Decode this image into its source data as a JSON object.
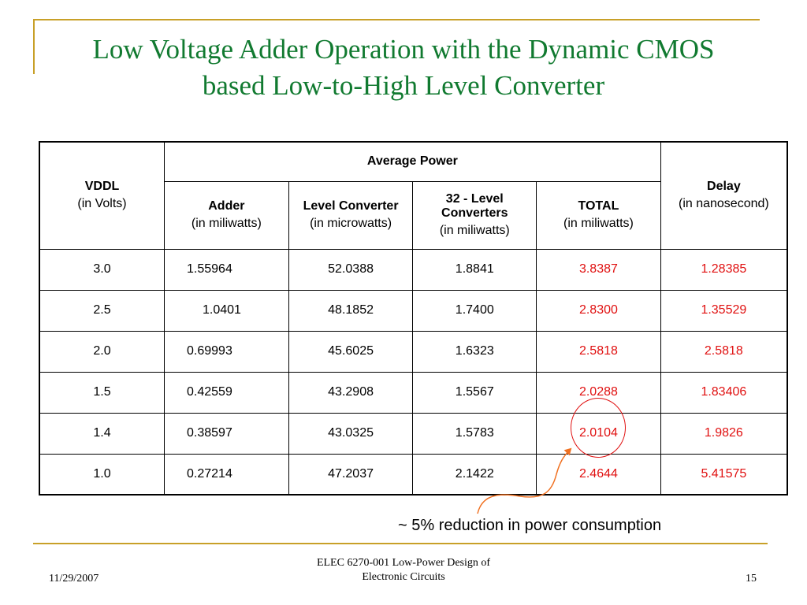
{
  "title": {
    "line1": "Low Voltage Adder Operation with the Dynamic CMOS",
    "line2": "based Low-to-High Level Converter"
  },
  "table": {
    "headers": {
      "vddl": "VDDL",
      "vddl_unit": "(in Volts)",
      "avg_power": "Average Power",
      "adder": "Adder",
      "adder_unit": "(in miliwatts)",
      "level_converter": "Level Converter",
      "level_converter_unit": "(in microwatts)",
      "converters32": "32 - Level Converters",
      "converters32_unit": "(in miliwatts)",
      "total": "TOTAL",
      "total_unit": "(in miliwatts)",
      "delay": "Delay",
      "delay_unit": "(in nanosecond)"
    },
    "rows": [
      {
        "vddl": "3.0",
        "adder": "1.55964",
        "level_converter": "52.0388",
        "converters32": "1.8841",
        "total": "3.8387",
        "delay": "1.28385"
      },
      {
        "vddl": "2.5",
        "adder": "1.0401",
        "level_converter": "48.1852",
        "converters32": "1.7400",
        "total": "2.8300",
        "delay": "1.35529"
      },
      {
        "vddl": "2.0",
        "adder": "0.69993",
        "level_converter": "45.6025",
        "converters32": "1.6323",
        "total": "2.5818",
        "delay": "2.5818"
      },
      {
        "vddl": "1.5",
        "adder": "0.42559",
        "level_converter": "43.2908",
        "converters32": "1.5567",
        "total": "2.0288",
        "delay": "1.83406"
      },
      {
        "vddl": "1.4",
        "adder": "0.38597",
        "level_converter": "43.0325",
        "converters32": "1.5783",
        "total": "2.0104",
        "delay": "1.9826"
      },
      {
        "vddl": "1.0",
        "adder": "0.27214",
        "level_converter": "47.2037",
        "converters32": "2.1422",
        "total": "2.4644",
        "delay": "5.41575"
      }
    ]
  },
  "annotation": {
    "text": "~ 5% reduction in power consumption"
  },
  "footer": {
    "date": "11/29/2007",
    "course_line1": "ELEC 6270-001 Low-Power Design of",
    "course_line2": "Electronic Circuits",
    "page": "15"
  },
  "colors": {
    "title": "#117a30",
    "accent_rule": "#c8a028",
    "highlight": "#e01010",
    "annotation_arrow": "#f07020"
  }
}
